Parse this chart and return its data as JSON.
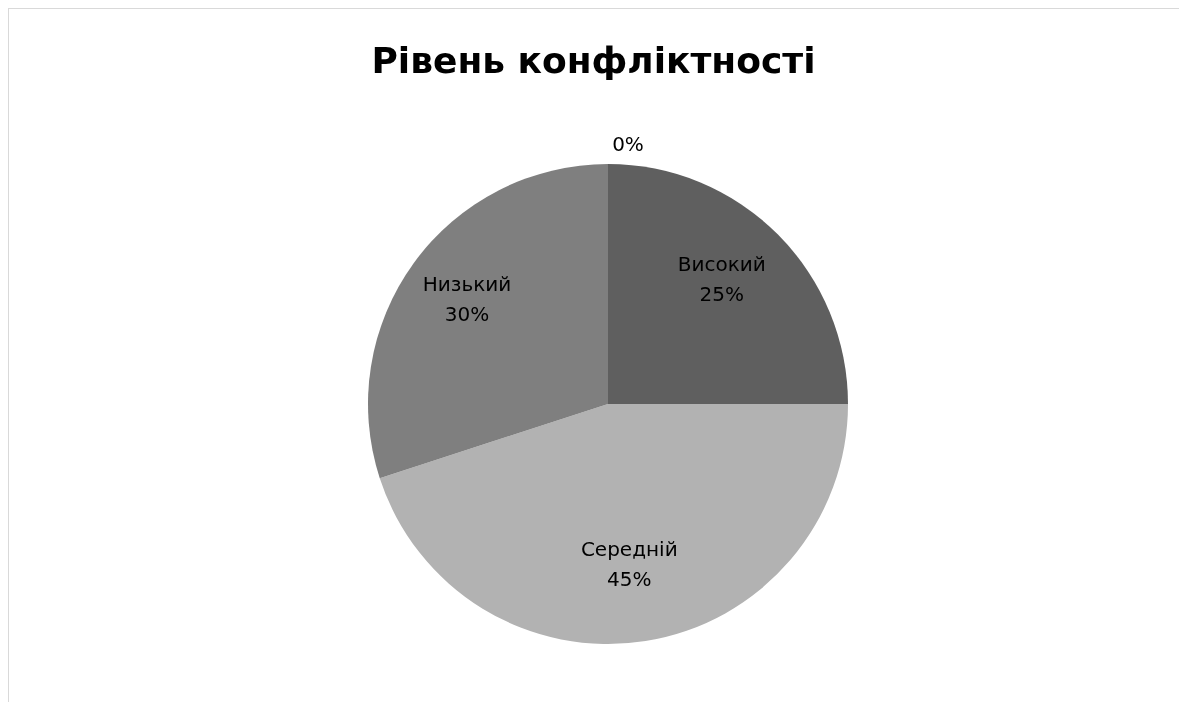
{
  "chart_data": {
    "type": "pie",
    "title": "Рівень конфліктності",
    "categories": [
      null,
      "Високий",
      "Середній",
      "Низький"
    ],
    "values": [
      0,
      25,
      45,
      30
    ],
    "value_labels": [
      "0%",
      "25%",
      "45%",
      "30%"
    ],
    "colors": [
      "#404040",
      "#5f5f5f",
      "#b2b2b2",
      "#7f7f7f"
    ],
    "legend": false
  }
}
